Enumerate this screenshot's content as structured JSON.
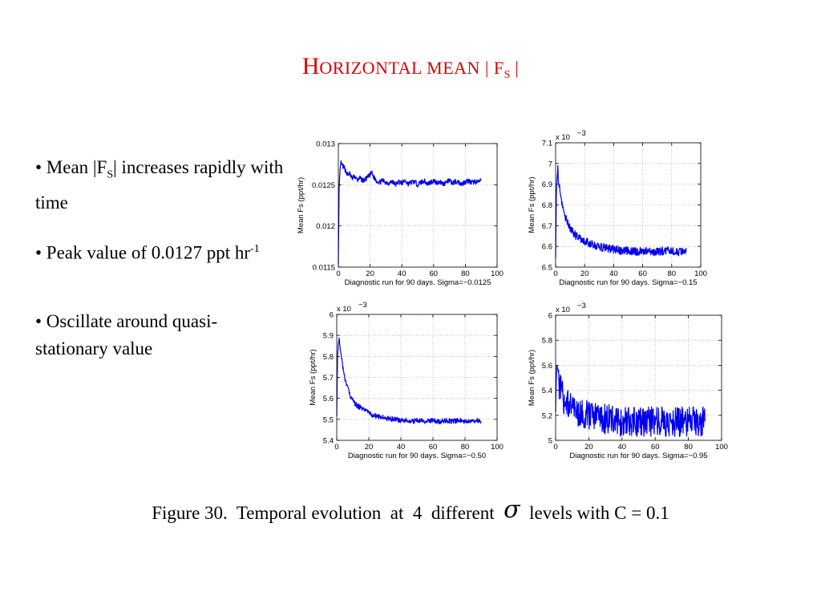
{
  "slide": {
    "title": {
      "first_letter": "H",
      "rest": "ORIZONTAL MEAN ",
      "bar_open": "|",
      "f": " F",
      "sub": "S",
      "bar_close": " |"
    },
    "bullets": [
      {
        "pre": "• Mean  |F",
        "sub": "S",
        "post": "|  increases rapidly with time"
      },
      {
        "pre": "• Peak value of 0.0127 ppt hr",
        "sup": "-1"
      },
      {
        "pre": "• Oscillate around quasi-stationary value"
      }
    ],
    "caption": {
      "pre": "Figure 30.  Temporal evolution  at  4  different  ",
      "sigma": "σ",
      "post": "  levels with C = 0.1"
    }
  },
  "chart_data": [
    {
      "type": "line",
      "xlabel": "Diagnostic run for 90 days. Sigma=−0.0125",
      "ylabel": "Mean Fs (ppt/hr)",
      "exponent": "",
      "xlim": [
        0,
        100
      ],
      "ylim": [
        0.0115,
        0.013
      ],
      "xticks": [
        0,
        20,
        40,
        60,
        80,
        100
      ],
      "yticks": [
        0.0115,
        0.012,
        0.0125,
        0.013
      ],
      "ytick_labels": [
        "0.0115",
        "0.012",
        "0.0125",
        "0.013"
      ],
      "grid": true,
      "color": "#0000ee",
      "series": [
        {
          "x": [
            0,
            0.5,
            1,
            1.5,
            2,
            3,
            4,
            5,
            6,
            7,
            8,
            9,
            10,
            11,
            12,
            13,
            14,
            16,
            18,
            20,
            21,
            22,
            24,
            26,
            28,
            30,
            32,
            34,
            36,
            38,
            40,
            42,
            44,
            46,
            48,
            50,
            52,
            54,
            56,
            58,
            60,
            62,
            64,
            66,
            68,
            70,
            72,
            74,
            76,
            78,
            80,
            82,
            84,
            86,
            88,
            90
          ],
          "y": [
            0.01155,
            0.01245,
            0.01265,
            0.01277,
            0.01275,
            0.01272,
            0.0127,
            0.01265,
            0.01262,
            0.01264,
            0.0126,
            0.01257,
            0.01261,
            0.01258,
            0.01255,
            0.01258,
            0.01257,
            0.01255,
            0.01258,
            0.01262,
            0.01265,
            0.0126,
            0.01255,
            0.01253,
            0.01255,
            0.01253,
            0.01252,
            0.01254,
            0.0125,
            0.01254,
            0.01252,
            0.01255,
            0.01251,
            0.01253,
            0.01254,
            0.0125,
            0.01253,
            0.01255,
            0.01251,
            0.01253,
            0.01255,
            0.01252,
            0.01254,
            0.01251,
            0.01253,
            0.01255,
            0.01252,
            0.01254,
            0.01253,
            0.01251,
            0.01254,
            0.01255,
            0.01252,
            0.01254,
            0.01253,
            0.01255
          ],
          "noise": 3e-05
        }
      ]
    },
    {
      "type": "line",
      "xlabel": "Diagnostic run for 90 days. Sigma=−0.15",
      "ylabel": "Mean Fs (ppt/hr)",
      "exponent": "x 10",
      "exponent_power": "−3",
      "xlim": [
        0,
        100
      ],
      "ylim": [
        6.5,
        7.1
      ],
      "xticks": [
        0,
        20,
        40,
        60,
        80,
        100
      ],
      "yticks": [
        6.5,
        6.6,
        6.7,
        6.8,
        6.9,
        7.0,
        7.1
      ],
      "ytick_labels": [
        "6.5",
        "6.6",
        "6.7",
        "6.8",
        "6.9",
        "7",
        "7.1"
      ],
      "grid": true,
      "color": "#0000ee",
      "series": [
        {
          "x": [
            0,
            0.5,
            1,
            1.5,
            2,
            3,
            4,
            5,
            6,
            8,
            10,
            12,
            14,
            16,
            18,
            20,
            22,
            25,
            28,
            32,
            36,
            40,
            44,
            48,
            52,
            56,
            60,
            64,
            68,
            72,
            76,
            80,
            84,
            88,
            90
          ],
          "y": [
            6.55,
            6.85,
            6.93,
            6.97,
            6.92,
            6.88,
            6.82,
            6.78,
            6.75,
            6.72,
            6.69,
            6.67,
            6.65,
            6.64,
            6.63,
            6.62,
            6.62,
            6.61,
            6.6,
            6.595,
            6.59,
            6.585,
            6.58,
            6.58,
            6.575,
            6.575,
            6.58,
            6.575,
            6.57,
            6.575,
            6.58,
            6.575,
            6.57,
            6.575,
            6.575
          ],
          "noise": 0.02
        }
      ]
    },
    {
      "type": "line",
      "xlabel": "Diagnostic run for 90 days. Sigma=−0.50",
      "ylabel": "Mean Fs (ppt/hr)",
      "exponent": "x 10",
      "exponent_power": "−3",
      "xlim": [
        0,
        100
      ],
      "ylim": [
        5.4,
        6.0
      ],
      "xticks": [
        0,
        20,
        40,
        60,
        80,
        100
      ],
      "yticks": [
        5.4,
        5.5,
        5.6,
        5.7,
        5.8,
        5.9,
        6.0
      ],
      "ytick_labels": [
        "5.4",
        "5.5",
        "5.6",
        "5.7",
        "5.8",
        "5.9",
        "6"
      ],
      "grid": true,
      "color": "#0000ee",
      "series": [
        {
          "x": [
            0,
            0.5,
            1,
            1.5,
            2,
            3,
            4,
            5,
            6,
            8,
            10,
            12,
            14,
            16,
            18,
            20,
            22,
            25,
            28,
            32,
            36,
            40,
            44,
            48,
            52,
            56,
            60,
            64,
            68,
            72,
            76,
            80,
            84,
            88,
            90
          ],
          "y": [
            5.52,
            5.8,
            5.86,
            5.88,
            5.85,
            5.8,
            5.74,
            5.7,
            5.67,
            5.62,
            5.59,
            5.57,
            5.56,
            5.55,
            5.54,
            5.53,
            5.52,
            5.515,
            5.51,
            5.505,
            5.5,
            5.495,
            5.495,
            5.49,
            5.495,
            5.49,
            5.495,
            5.49,
            5.495,
            5.49,
            5.495,
            5.49,
            5.495,
            5.495,
            5.49
          ],
          "noise": 0.012
        }
      ]
    },
    {
      "type": "line",
      "xlabel": "Diagnostic run for 90 days. Sigma=−0.95",
      "ylabel": "Mean Fs (ppt/hr)",
      "exponent": "x 10",
      "exponent_power": "−3",
      "xlim": [
        0,
        100
      ],
      "ylim": [
        5.0,
        6.0
      ],
      "xticks": [
        0,
        20,
        40,
        60,
        80,
        100
      ],
      "yticks": [
        5.0,
        5.2,
        5.4,
        5.6,
        5.8,
        6.0
      ],
      "ytick_labels": [
        "5",
        "5.2",
        "5.4",
        "5.6",
        "5.8",
        "6"
      ],
      "grid": true,
      "color": "#0000ee",
      "series": [
        {
          "x": [
            0,
            0.5,
            1,
            2,
            3,
            5,
            8,
            10,
            15,
            20,
            25,
            30,
            35,
            40,
            45,
            50,
            55,
            60,
            65,
            70,
            75,
            80,
            85,
            90
          ],
          "y": [
            5.25,
            5.55,
            5.6,
            5.45,
            5.4,
            5.33,
            5.28,
            5.25,
            5.22,
            5.2,
            5.18,
            5.17,
            5.16,
            5.15,
            5.15,
            5.15,
            5.15,
            5.15,
            5.15,
            5.15,
            5.15,
            5.15,
            5.15,
            5.15
          ],
          "noise": 0.12
        }
      ]
    }
  ]
}
